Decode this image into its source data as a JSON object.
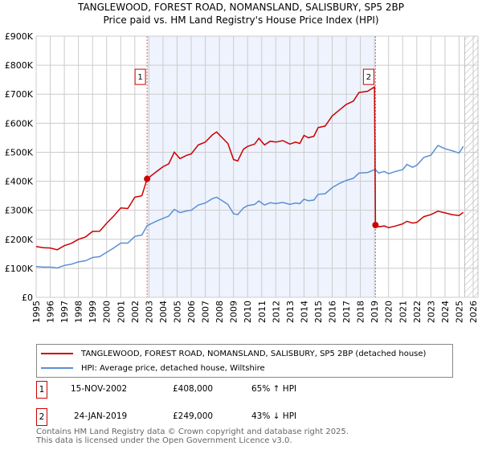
{
  "title_line1": "TANGLEWOOD, FOREST ROAD, NOMANSLAND, SALISBURY, SP5 2BP",
  "title_line2": "Price paid vs. HM Land Registry's House Price Index (HPI)",
  "colors": {
    "property": "#cc0000",
    "hpi": "#5b8fd4",
    "shade": "#eef3fd"
  },
  "chart_data": {
    "type": "line",
    "title": "Price paid vs. HM Land Registry's House Price Index (HPI)",
    "xlim": [
      1995,
      2026
    ],
    "ylim": [
      0,
      900000
    ],
    "yticks": [
      0,
      100000,
      200000,
      300000,
      400000,
      500000,
      600000,
      700000,
      800000,
      900000
    ],
    "ytick_labels": [
      "£0",
      "£100K",
      "£200K",
      "£300K",
      "£400K",
      "£500K",
      "£600K",
      "£700K",
      "£800K",
      "£900K"
    ],
    "xticks": [
      1995,
      1996,
      1997,
      1998,
      1999,
      2000,
      2001,
      2002,
      2003,
      2004,
      2005,
      2006,
      2007,
      2008,
      2009,
      2010,
      2011,
      2012,
      2013,
      2014,
      2015,
      2016,
      2017,
      2018,
      2019,
      2020,
      2021,
      2022,
      2023,
      2024,
      2025,
      2026
    ],
    "grid": true,
    "shaded_range": [
      2002.87,
      2019.07
    ],
    "hatched_from": 2025.4,
    "series": [
      {
        "name": "TANGLEWOOD, FOREST ROAD, NOMANSLAND, SALISBURY, SP5 2BP (detached house)",
        "x": [
          1995,
          1995.5,
          1996,
          1996.5,
          1997,
          1997.5,
          1998,
          1998.5,
          1999,
          1999.5,
          2000,
          2000.5,
          2001,
          2001.5,
          2002,
          2002.5,
          2002.87,
          2003.5,
          2004,
          2004.4,
          2004.8,
          2005.2,
          2005.7,
          2006,
          2006.5,
          2007,
          2007.5,
          2007.8,
          2008.2,
          2008.6,
          2009,
          2009.3,
          2009.7,
          2010,
          2010.5,
          2010.8,
          2011.2,
          2011.6,
          2012,
          2012.5,
          2013,
          2013.4,
          2013.7,
          2014,
          2014.3,
          2014.7,
          2015,
          2015.5,
          2016,
          2016.5,
          2017,
          2017.5,
          2017.9,
          2018.5,
          2019.0,
          2019.07,
          2019.3,
          2019.7,
          2020,
          2020.5,
          2021,
          2021.3,
          2021.7,
          2022,
          2022.5,
          2023,
          2023.5,
          2024,
          2024.5,
          2025,
          2025.3
        ],
        "y": [
          175000,
          171000,
          170000,
          164000,
          178000,
          186000,
          200000,
          208000,
          227000,
          228000,
          255000,
          280000,
          308000,
          306000,
          345000,
          350000,
          408000,
          432000,
          450000,
          460000,
          500000,
          478000,
          490000,
          494000,
          525000,
          535000,
          560000,
          570000,
          550000,
          530000,
          475000,
          470000,
          510000,
          520000,
          528000,
          548000,
          525000,
          538000,
          535000,
          540000,
          528000,
          535000,
          530000,
          558000,
          550000,
          555000,
          585000,
          590000,
          625000,
          645000,
          665000,
          676000,
          706000,
          710000,
          725000,
          249000,
          243000,
          246000,
          240000,
          246000,
          253000,
          262000,
          256000,
          258000,
          278000,
          285000,
          297000,
          291000,
          285000,
          282000,
          293000
        ],
        "color": "#cc0000"
      },
      {
        "name": "HPI: Average price, detached house, Wiltshire",
        "x": [
          1995,
          1995.5,
          1996,
          1996.5,
          1997,
          1997.5,
          1998,
          1998.5,
          1999,
          1999.5,
          2000,
          2000.5,
          2001,
          2001.5,
          2002,
          2002.5,
          2002.87,
          2003.5,
          2004,
          2004.4,
          2004.8,
          2005.2,
          2005.7,
          2006,
          2006.5,
          2007,
          2007.5,
          2007.8,
          2008.2,
          2008.6,
          2009,
          2009.3,
          2009.7,
          2010,
          2010.5,
          2010.8,
          2011.2,
          2011.6,
          2012,
          2012.5,
          2013,
          2013.4,
          2013.7,
          2014,
          2014.3,
          2014.7,
          2015,
          2015.5,
          2016,
          2016.5,
          2017,
          2017.5,
          2017.9,
          2018.5,
          2019.0,
          2019.07,
          2019.3,
          2019.7,
          2020,
          2020.5,
          2021,
          2021.3,
          2021.7,
          2022,
          2022.5,
          2023,
          2023.5,
          2024,
          2024.5,
          2025,
          2025.3
        ],
        "y": [
          106000,
          104000,
          104000,
          101000,
          110000,
          114000,
          122000,
          126000,
          137000,
          140000,
          155000,
          170000,
          187000,
          187000,
          210000,
          215000,
          247000,
          262000,
          272000,
          280000,
          303000,
          292000,
          298000,
          300000,
          318000,
          325000,
          340000,
          345000,
          333000,
          320000,
          288000,
          285000,
          308000,
          316000,
          320000,
          332000,
          318000,
          326000,
          323000,
          327000,
          320000,
          325000,
          323000,
          338000,
          333000,
          335000,
          355000,
          357000,
          378000,
          392000,
          403000,
          410000,
          428000,
          430000,
          440000,
          440000,
          428000,
          434000,
          426000,
          434000,
          440000,
          458000,
          448000,
          455000,
          482000,
          490000,
          523000,
          512000,
          505000,
          497000,
          520000
        ],
        "color": "#5b8fd4"
      }
    ],
    "sales": [
      {
        "label": "1",
        "x": 2002.87,
        "y": 408000
      },
      {
        "label": "2",
        "x": 2019.07,
        "y": 249000
      }
    ]
  },
  "legend": {
    "property": "TANGLEWOOD, FOREST ROAD, NOMANSLAND, SALISBURY, SP5 2BP (detached house)",
    "hpi": "HPI: Average price, detached house, Wiltshire"
  },
  "sales_table": [
    {
      "num": "1",
      "date": "15-NOV-2002",
      "price": "£408,000",
      "delta": "65% ↑ HPI"
    },
    {
      "num": "2",
      "date": "24-JAN-2019",
      "price": "£249,000",
      "delta": "43% ↓ HPI"
    }
  ],
  "footer": {
    "line1": "Contains HM Land Registry data © Crown copyright and database right 2025.",
    "line2": "This data is licensed under the Open Government Licence v3.0."
  }
}
